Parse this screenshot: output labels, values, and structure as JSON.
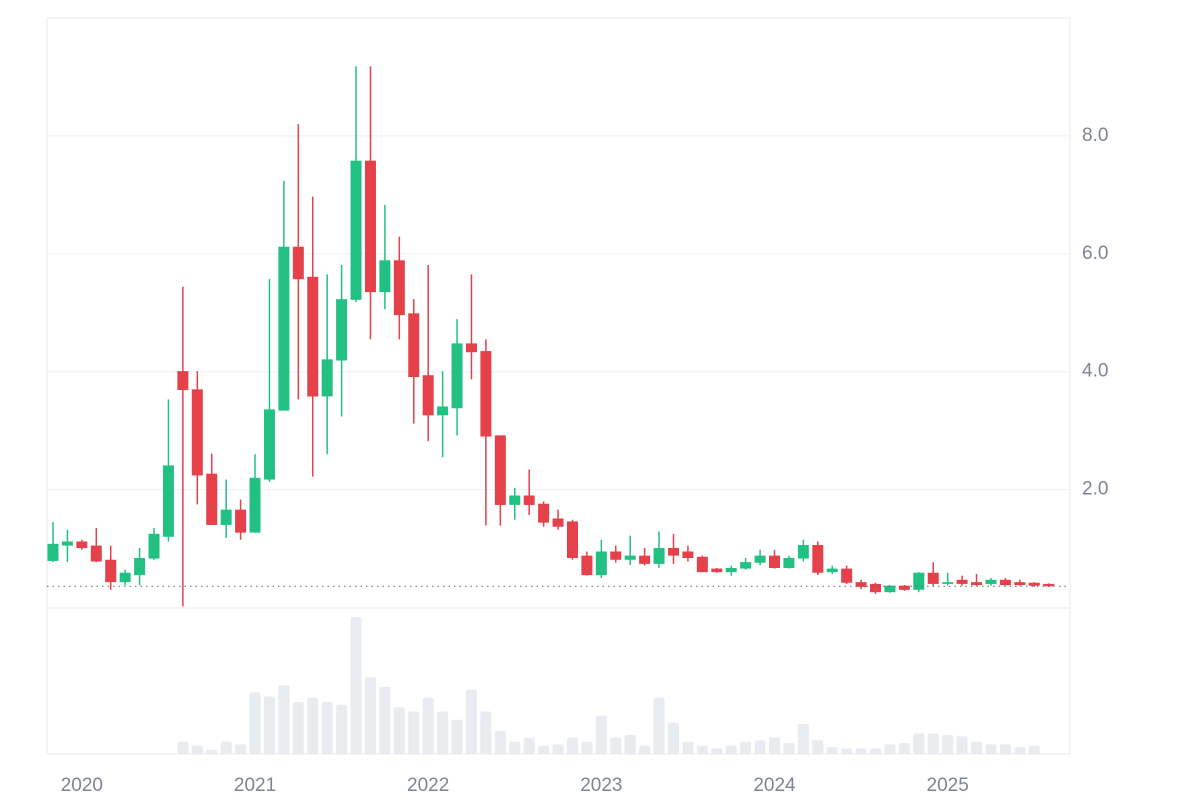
{
  "chart_data": {
    "type": "candlestick",
    "categories": [
      null,
      null,
      "2020",
      null,
      null,
      null,
      null,
      null,
      null,
      null,
      null,
      null,
      null,
      null,
      "2021",
      null,
      null,
      null,
      null,
      null,
      null,
      null,
      null,
      null,
      null,
      null,
      "2022",
      null,
      null,
      null,
      null,
      null,
      null,
      null,
      null,
      null,
      null,
      null,
      "2023",
      null,
      null,
      null,
      null,
      null,
      null,
      null,
      null,
      null,
      null,
      null,
      "2024",
      null,
      null,
      null,
      null,
      null,
      null,
      null,
      null,
      null,
      null,
      null,
      "2025",
      null,
      null,
      null,
      null,
      null,
      null,
      null
    ],
    "open": [
      0.79,
      1.05,
      1.12,
      1.05,
      0.81,
      0.43,
      0.55,
      0.83,
      1.2,
      4.01,
      3.7,
      2.27,
      1.4,
      1.66,
      1.27,
      2.17,
      3.34,
      6.12,
      5.61,
      3.58,
      4.19,
      5.22,
      7.58,
      5.35,
      5.89,
      4.99,
      3.94,
      3.26,
      3.38,
      4.48,
      4.35,
      2.92,
      1.74,
      1.9,
      1.76,
      1.51,
      1.46,
      0.88,
      0.55,
      0.95,
      0.81,
      0.88,
      0.74,
      1.01,
      0.95,
      0.86,
      0.66,
      0.6,
      0.66,
      0.76,
      0.88,
      0.67,
      0.83,
      1.06,
      0.6,
      0.66,
      0.43,
      0.4,
      0.26,
      0.37,
      0.3,
      0.59,
      0.4,
      0.47,
      0.43,
      0.4,
      0.47,
      0.43,
      0.42,
      0.4
    ],
    "high": [
      1.45,
      1.32,
      1.15,
      1.35,
      1.05,
      0.64,
      1.01,
      1.35,
      3.53,
      5.44,
      4.01,
      2.61,
      2.17,
      1.83,
      2.6,
      5.57,
      7.24,
      8.2,
      6.97,
      5.65,
      5.81,
      9.18,
      9.18,
      6.83,
      6.29,
      5.23,
      5.81,
      4.01,
      4.89,
      5.65,
      4.55,
      2.92,
      2.03,
      2.34,
      1.8,
      1.66,
      1.49,
      0.95,
      1.15,
      1.05,
      1.22,
      1.01,
      1.29,
      1.25,
      1.05,
      0.88,
      0.67,
      0.71,
      0.84,
      0.98,
      0.98,
      0.88,
      1.15,
      1.12,
      0.71,
      0.71,
      0.47,
      0.42,
      0.38,
      0.38,
      0.6,
      0.77,
      0.59,
      0.54,
      0.57,
      0.5,
      0.5,
      0.47,
      0.43,
      0.41
    ],
    "low": [
      0.77,
      0.77,
      0.98,
      0.77,
      0.3,
      0.38,
      0.38,
      0.81,
      1.12,
      0.02,
      1.75,
      1.4,
      1.18,
      1.15,
      1.27,
      2.13,
      3.34,
      3.53,
      2.22,
      2.6,
      3.24,
      5.18,
      4.55,
      5.06,
      4.55,
      3.12,
      2.82,
      2.55,
      2.92,
      3.87,
      1.39,
      1.39,
      1.49,
      1.57,
      1.37,
      1.32,
      0.81,
      0.54,
      0.5,
      0.76,
      0.72,
      0.71,
      0.67,
      0.74,
      0.78,
      0.6,
      0.59,
      0.54,
      0.64,
      0.72,
      0.66,
      0.66,
      0.78,
      0.55,
      0.57,
      0.4,
      0.31,
      0.23,
      0.25,
      0.28,
      0.26,
      0.37,
      0.37,
      0.37,
      0.37,
      0.37,
      0.37,
      0.37,
      0.35,
      0.35
    ],
    "close": [
      1.08,
      1.12,
      1.01,
      0.78,
      0.43,
      0.59,
      0.84,
      1.25,
      2.41,
      3.69,
      2.24,
      1.4,
      1.66,
      1.27,
      2.2,
      3.36,
      6.12,
      5.57,
      3.58,
      4.21,
      5.23,
      7.58,
      5.35,
      5.89,
      4.96,
      3.91,
      3.26,
      3.41,
      4.48,
      4.33,
      2.9,
      1.74,
      1.9,
      1.74,
      1.44,
      1.37,
      0.84,
      0.55,
      0.95,
      0.81,
      0.88,
      0.74,
      1.01,
      0.88,
      0.84,
      0.6,
      0.6,
      0.67,
      0.77,
      0.88,
      0.67,
      0.84,
      1.06,
      0.59,
      0.66,
      0.42,
      0.35,
      0.26,
      0.37,
      0.3,
      0.59,
      0.4,
      0.43,
      0.4,
      0.38,
      0.47,
      0.38,
      0.38,
      0.37,
      0.36
    ],
    "volume": [
      null,
      null,
      null,
      null,
      null,
      null,
      null,
      null,
      null,
      9,
      6,
      3,
      9,
      7,
      45,
      42,
      50,
      38,
      41,
      38,
      36,
      100,
      56,
      49,
      34,
      31,
      41,
      31,
      25,
      47,
      31,
      17,
      9,
      12,
      6,
      7,
      12,
      9,
      28,
      12,
      14,
      6,
      41,
      23,
      9,
      6,
      4,
      6,
      9,
      10,
      12,
      8,
      22,
      10,
      5,
      4,
      4,
      4,
      7,
      8,
      15,
      15,
      14,
      13,
      9,
      7,
      7,
      5,
      6,
      null
    ],
    "up_color": "#22c183",
    "down_color": "#e4414a",
    "volume_color": "#e8ebf0",
    "ylim": [
      0,
      10
    ],
    "yticks": [
      {
        "value": 2,
        "label": "2.0"
      },
      {
        "value": 4,
        "label": "4.0"
      },
      {
        "value": 6,
        "label": "6.0"
      },
      {
        "value": 8,
        "label": "8.0"
      }
    ],
    "grid": true,
    "price_line": true
  }
}
